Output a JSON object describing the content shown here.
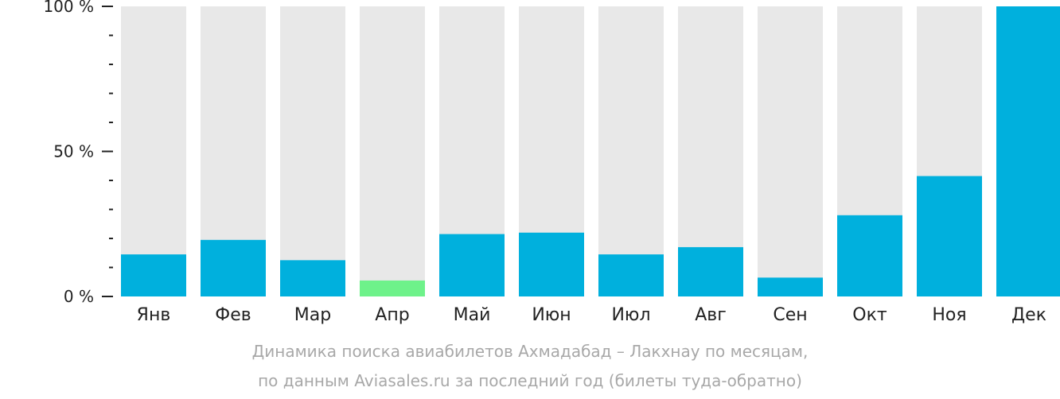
{
  "chart_data": {
    "type": "bar",
    "categories": [
      "Янв",
      "Фев",
      "Мар",
      "Апр",
      "Май",
      "Июн",
      "Июл",
      "Авг",
      "Сен",
      "Окт",
      "Ноя",
      "Дек"
    ],
    "values": [
      14.5,
      19.5,
      12.5,
      5.5,
      21.5,
      22,
      14.5,
      17,
      6.5,
      28,
      41.5,
      100
    ],
    "highlight_index": 3,
    "ylim": [
      0,
      100
    ],
    "yticks": [
      {
        "value": 100,
        "label": "100 %"
      },
      {
        "value": 50,
        "label": "50 %"
      },
      {
        "value": 0,
        "label": "0 %"
      }
    ],
    "minor_ticks": [
      10,
      20,
      30,
      40,
      60,
      70,
      80,
      90
    ],
    "grid": false,
    "title": "Динамика поиска авиабилетов Ахмадабад – Лакхнау по месяцам,",
    "subtitle": "по данным Aviasales.ru за последний год (билеты туда-обратно)"
  },
  "colors": {
    "bar": "#00b0dd",
    "highlight": "#6ef28a",
    "background_bar": "#e8e8e8",
    "axis": "#222222",
    "tick_label": "#222222",
    "caption": "#a8a8a8"
  }
}
